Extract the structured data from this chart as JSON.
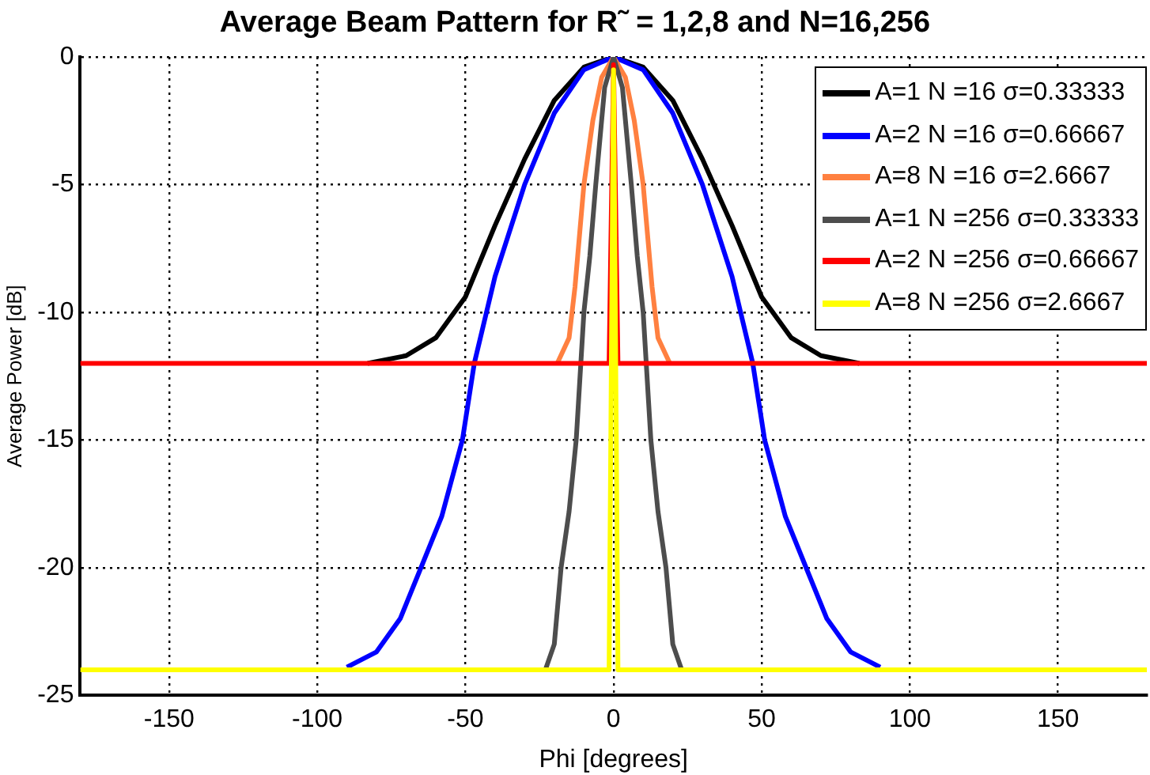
{
  "chart_data": {
    "type": "line",
    "title": "Average Beam Pattern for R˜ = 1,2,8 and N=16,256",
    "xlabel": "Phi [degrees]",
    "ylabel": "Average Power [dB]",
    "xlim": [
      -180,
      180
    ],
    "xticks": [
      -150,
      -100,
      -50,
      0,
      50,
      100,
      150
    ],
    "ylim": [
      -25,
      0
    ],
    "yticks": [
      -25,
      -20,
      -15,
      -10,
      -5,
      0
    ],
    "grid": true,
    "legend": "top right",
    "marker": "none",
    "line_style": "solid",
    "series": [
      {
        "name": "A=1 N =16 σ=0.33333",
        "color": "#000000",
        "x": [
          -83,
          -70,
          -60,
          -50,
          -40,
          -30,
          -20,
          -10,
          0,
          10,
          20,
          30,
          40,
          50,
          60,
          70,
          83
        ],
        "values": [
          -12,
          -11.7,
          -11,
          -9.4,
          -6.6,
          -4,
          -1.7,
          -0.4,
          0,
          -0.4,
          -1.7,
          -4,
          -6.6,
          -9.4,
          -11,
          -11.7,
          -12
        ]
      },
      {
        "name": "A=2 N =16 σ=0.66667",
        "color": "#0000ff",
        "x": [
          -90,
          -80,
          -72,
          -65,
          -58,
          -51,
          -47,
          -40,
          -30,
          -20,
          -10,
          0,
          10,
          20,
          30,
          40,
          47,
          51,
          58,
          65,
          72,
          80,
          90
        ],
        "values": [
          -23.9,
          -23.3,
          -22,
          -20,
          -18,
          -15,
          -12,
          -8.6,
          -5,
          -2.2,
          -0.5,
          0,
          -0.5,
          -2.2,
          -5,
          -8.6,
          -12,
          -15,
          -18,
          -20,
          -22,
          -23.3,
          -23.9
        ]
      },
      {
        "name": "A=8 N =16 σ=2.6667",
        "color": "#ff8040",
        "x": [
          -19,
          -15,
          -13,
          -10,
          -7,
          -4,
          0,
          4,
          7,
          10,
          13,
          15,
          19
        ],
        "values": [
          -12,
          -11,
          -9,
          -5,
          -2.5,
          -0.8,
          0,
          -0.8,
          -2.5,
          -5,
          -9,
          -11,
          -12
        ]
      },
      {
        "name": "A=1 N =256 σ=0.33333",
        "color": "#4d4d4d",
        "x": [
          -23,
          -20,
          -17.7,
          -15,
          -12.6,
          -10,
          -8,
          -6,
          -3,
          0,
          3,
          6,
          8,
          10,
          12.6,
          15,
          17.7,
          20,
          23
        ],
        "values": [
          -24,
          -23,
          -20,
          -17.8,
          -15,
          -10,
          -7.8,
          -5,
          -1.2,
          0,
          -1.2,
          -5,
          -7.8,
          -10,
          -15,
          -17.8,
          -20,
          -23,
          -24
        ]
      },
      {
        "name": "A=2 N =256 σ=0.66667",
        "color": "#ff0000",
        "x": [
          -180,
          -1.5,
          0,
          1.5,
          180
        ],
        "values": [
          -12,
          -12,
          -0.3,
          -12,
          -12
        ]
      },
      {
        "name": "A=8 N =256 σ=2.6667",
        "color": "#ffff00",
        "x": [
          -180,
          -1.5,
          0,
          1.5,
          180
        ],
        "values": [
          -24,
          -24,
          -0.5,
          -24,
          -24
        ]
      }
    ]
  }
}
